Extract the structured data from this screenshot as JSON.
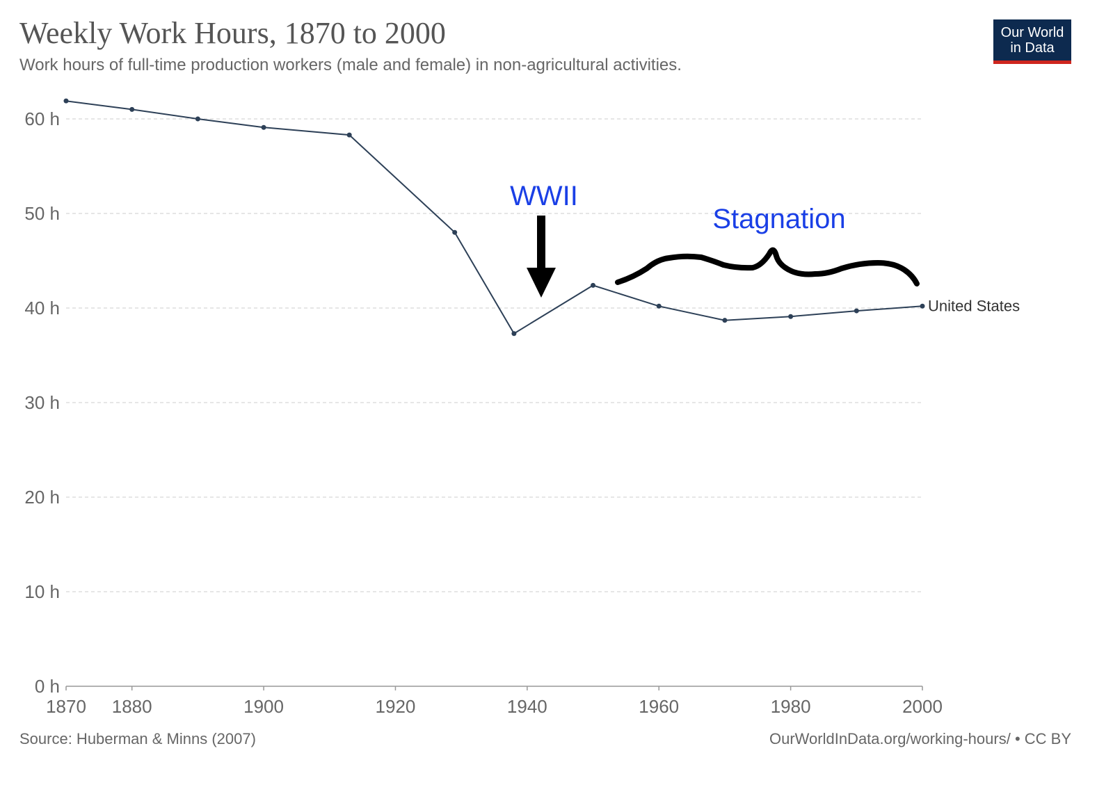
{
  "header": {
    "title": "Weekly Work Hours, 1870 to 2000",
    "subtitle": "Work hours of full-time production workers (male and female) in non-agricultural activities."
  },
  "logo": {
    "line1": "Our World",
    "line2": "in Data"
  },
  "footer": {
    "source": "Source: Huberman & Minns (2007)",
    "credit": "OurWorldInData.org/working-hours/ • CC BY"
  },
  "annotations": {
    "wwii": "WWII",
    "stagnation": "Stagnation"
  },
  "colors": {
    "series": "#2d4057",
    "annotation_text": "#1a3fe6",
    "grid": "#dddddd",
    "logo_bg": "#0d2a4f",
    "logo_bar": "#ce261e"
  },
  "chart_data": {
    "type": "line",
    "title": "Weekly Work Hours, 1870 to 2000",
    "xlim": [
      1870,
      2000
    ],
    "ylim": [
      0,
      60
    ],
    "x_ticks": [
      1870,
      1880,
      1900,
      1920,
      1940,
      1960,
      1980,
      2000
    ],
    "y_ticks": [
      0,
      10,
      20,
      30,
      40,
      50,
      60
    ],
    "y_tick_labels": [
      "0 h",
      "10 h",
      "20 h",
      "30 h",
      "40 h",
      "50 h",
      "60 h"
    ],
    "grid": "horizontal dashed",
    "series": [
      {
        "name": "United States",
        "x": [
          1870,
          1880,
          1890,
          1900,
          1913,
          1929,
          1938,
          1950,
          1960,
          1970,
          1980,
          1990,
          2000
        ],
        "values": [
          61.9,
          61.0,
          60.0,
          59.1,
          58.3,
          48.0,
          37.3,
          42.4,
          40.2,
          38.7,
          39.1,
          39.7,
          40.2
        ]
      }
    ]
  }
}
